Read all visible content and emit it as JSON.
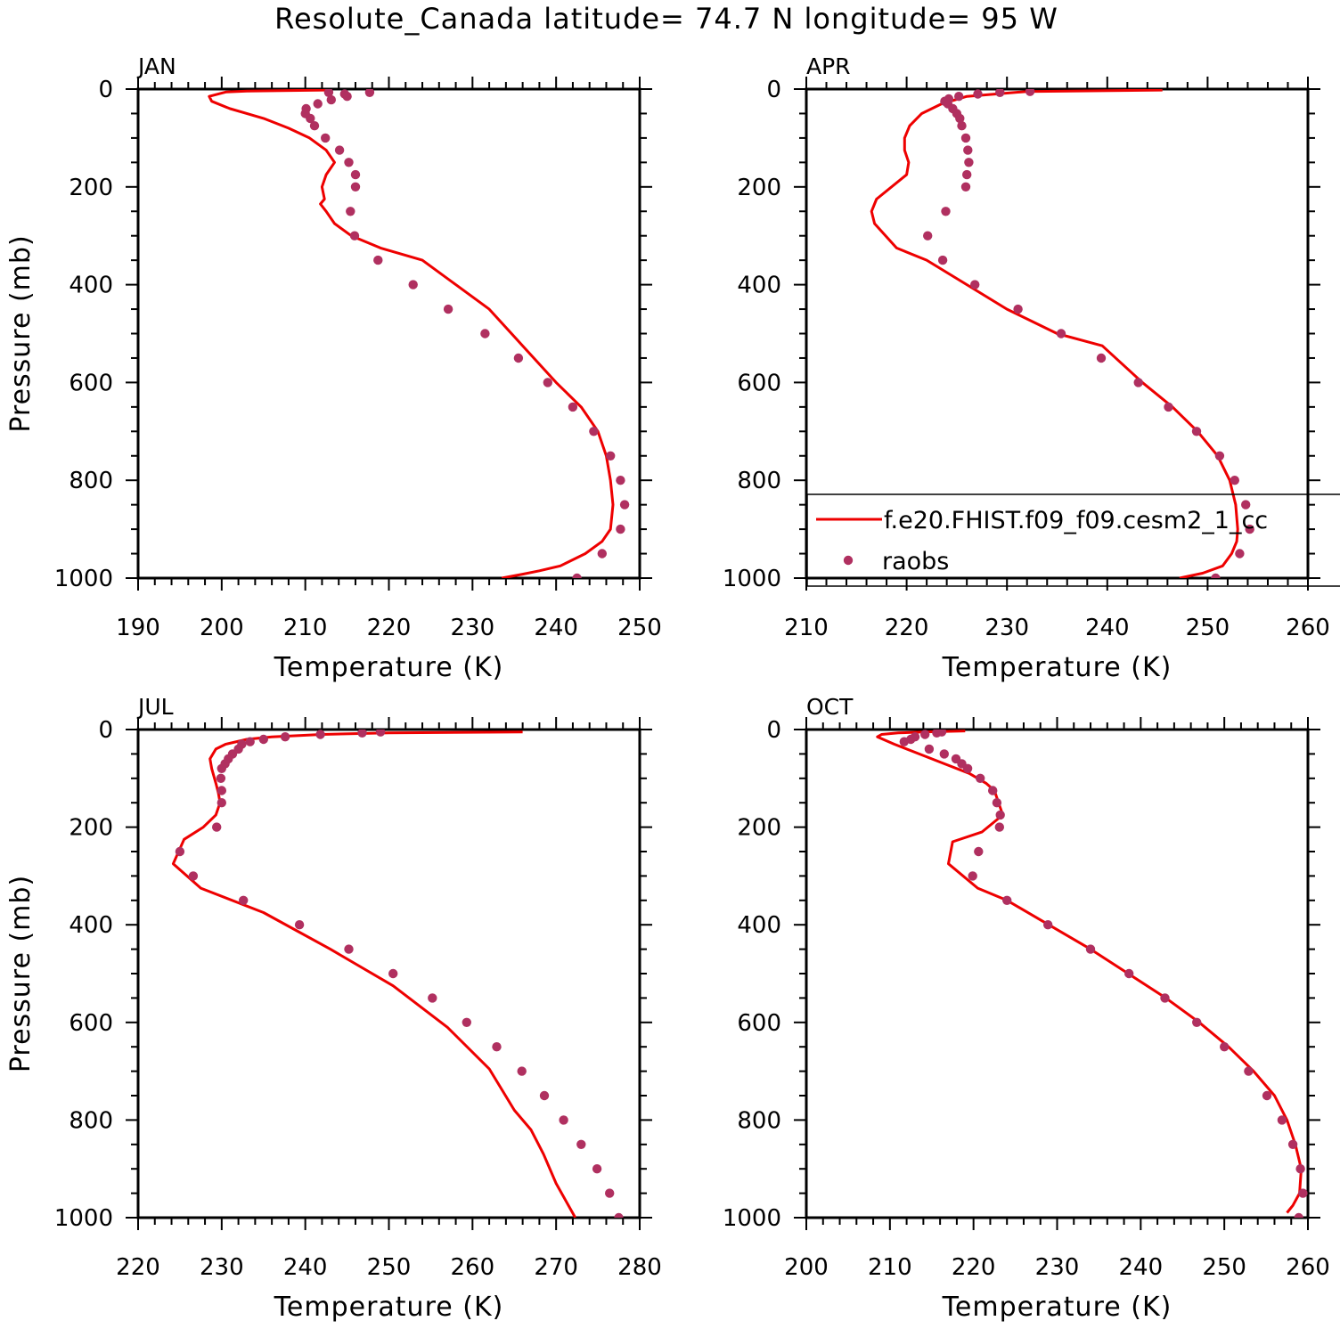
{
  "title": "Resolute_Canada  latitude= 74.7 N longitude= 95 W",
  "colors": {
    "model": "#ee0000",
    "obs": "#b03060",
    "axis": "#000000"
  },
  "legend": {
    "model_label": "f.e20.FHIST.f09_f09.cesm2_1_cc",
    "obs_label": "raobs"
  },
  "chart_data": [
    {
      "type": "line",
      "panel": "JAN",
      "xlabel": "Temperature (K)",
      "ylabel": "Pressure (mb)",
      "xlim": [
        190,
        250
      ],
      "ylim": [
        0,
        1000
      ],
      "y_inverted": true,
      "xticks": [
        190,
        200,
        210,
        220,
        230,
        240,
        250
      ],
      "yticks": [
        0,
        200,
        400,
        600,
        800,
        1000
      ],
      "series": [
        {
          "name": "f.e20.FHIST.f09_f09.cesm2_1_cc",
          "kind": "line",
          "x": [
            212.5,
            203,
            200.5,
            198.5,
            198.8,
            201,
            205,
            208,
            210.5,
            212.5,
            213.5,
            212.5,
            212.0,
            212.3,
            211.8,
            212.5,
            213.5,
            215.5,
            219,
            224,
            228,
            232,
            236,
            240,
            243,
            245,
            246,
            246.5,
            246.8,
            246.5,
            245.5,
            243.5,
            240.5,
            238,
            236,
            233.5
          ],
          "y": [
            2,
            4,
            6,
            15,
            25,
            40,
            60,
            80,
            100,
            125,
            150,
            175,
            200,
            225,
            235,
            250,
            275,
            300,
            325,
            350,
            400,
            450,
            525,
            600,
            650,
            700,
            750,
            800,
            850,
            900,
            925,
            950,
            975,
            985,
            992,
            1000
          ]
        },
        {
          "name": "raobs",
          "kind": "scatter",
          "x": [
            217.7,
            214.7,
            212.8,
            215.0,
            213.1,
            211.5,
            210.1,
            210.0,
            210.6,
            211.1,
            212.4,
            214.1,
            215.2,
            216.0,
            216.0,
            215.4,
            215.9,
            218.7,
            222.9,
            227.1,
            231.5,
            235.5,
            239.0,
            242.0,
            244.5,
            246.5,
            247.7,
            248.2,
            247.7,
            245.5,
            242.5
          ],
          "y": [
            7,
            10,
            7,
            15,
            22,
            30,
            40,
            50,
            60,
            75,
            100,
            125,
            150,
            175,
            200,
            250,
            300,
            350,
            400,
            450,
            500,
            550,
            600,
            650,
            700,
            750,
            800,
            850,
            900,
            950,
            1000
          ]
        }
      ]
    },
    {
      "type": "line",
      "panel": "APR",
      "xlabel": "Temperature (K)",
      "ylabel": "",
      "xlim": [
        210,
        260
      ],
      "ylim": [
        0,
        1000
      ],
      "y_inverted": true,
      "xticks": [
        210,
        220,
        230,
        240,
        250,
        260
      ],
      "yticks": [
        0,
        200,
        400,
        600,
        800,
        1000
      ],
      "series": [
        {
          "name": "f.e20.FHIST.f09_f09.cesm2_1_cc",
          "kind": "line",
          "x": [
            245.5,
            232,
            226,
            223.5,
            221.5,
            220.3,
            219.8,
            219.8,
            220.2,
            220.0,
            217,
            216.5,
            216.8,
            219,
            222,
            226,
            230,
            235,
            239.5,
            243.5,
            246.5,
            249,
            251,
            252.2,
            252.8,
            253.0,
            252.9,
            252.4,
            251.5,
            249.5,
            247.2
          ],
          "y": [
            2,
            5,
            15,
            30,
            50,
            75,
            100,
            125,
            150,
            175,
            225,
            250,
            275,
            325,
            350,
            400,
            450,
            500,
            525,
            600,
            650,
            700,
            750,
            800,
            850,
            900,
            925,
            950,
            975,
            990,
            1000
          ]
        },
        {
          "name": "raobs",
          "kind": "scatter",
          "x": [
            232.3,
            229.3,
            227.1,
            225.2,
            224.2,
            223.8,
            224.1,
            224.6,
            225.0,
            225.3,
            225.5,
            225.9,
            226.1,
            226.2,
            226.0,
            225.9,
            223.9,
            222.1,
            223.6,
            226.8,
            231.1,
            235.4,
            239.4,
            243.1,
            246.1,
            248.9,
            251.2,
            252.7,
            253.8,
            254.2,
            253.2,
            250.8
          ],
          "y": [
            5,
            7,
            10,
            15,
            20,
            25,
            30,
            40,
            50,
            60,
            75,
            100,
            125,
            150,
            175,
            200,
            250,
            300,
            350,
            400,
            450,
            500,
            550,
            600,
            650,
            700,
            750,
            800,
            850,
            900,
            950,
            1000
          ]
        }
      ]
    },
    {
      "type": "line",
      "panel": "JUL",
      "xlabel": "Temperature (K)",
      "ylabel": "Pressure (mb)",
      "xlim": [
        220,
        280
      ],
      "ylim": [
        0,
        1000
      ],
      "y_inverted": true,
      "xticks": [
        220,
        230,
        240,
        250,
        260,
        270,
        280
      ],
      "yticks": [
        0,
        200,
        400,
        600,
        800,
        1000
      ],
      "series": [
        {
          "name": "f.e20.FHIST.f09_f09.cesm2_1_cc",
          "kind": "line",
          "x": [
            266,
            250,
            242,
            236,
            233,
            230.5,
            229.3,
            228.6,
            228.8,
            229.3,
            229.6,
            229.8,
            229.3,
            227.8,
            225.5,
            224.2,
            227.5,
            235,
            243,
            250.5,
            257,
            262,
            265,
            267,
            268.5,
            270,
            272.3
          ],
          "y": [
            5,
            7,
            10,
            15,
            20,
            30,
            40,
            60,
            80,
            110,
            130,
            150,
            175,
            200,
            225,
            275,
            325,
            375,
            450,
            525,
            610,
            695,
            780,
            820,
            870,
            930,
            1000
          ]
        },
        {
          "name": "raobs",
          "kind": "scatter",
          "x": [
            249.0,
            246.8,
            241.8,
            237.6,
            235.0,
            233.4,
            232.4,
            232.0,
            231.3,
            230.8,
            230.4,
            230.0,
            229.9,
            230.0,
            230.0,
            229.4,
            225.0,
            226.6,
            232.6,
            239.3,
            245.2,
            250.5,
            255.2,
            259.3,
            262.9,
            265.9,
            268.6,
            270.9,
            273.0,
            274.9,
            276.4,
            277.5
          ],
          "y": [
            5,
            7,
            10,
            15,
            20,
            25,
            30,
            40,
            50,
            60,
            70,
            80,
            100,
            125,
            150,
            200,
            250,
            300,
            350,
            400,
            450,
            500,
            550,
            600,
            650,
            700,
            750,
            800,
            850,
            900,
            950,
            1000
          ]
        }
      ]
    },
    {
      "type": "line",
      "panel": "OCT",
      "xlabel": "Temperature (K)",
      "ylabel": "",
      "xlim": [
        200,
        260
      ],
      "ylim": [
        0,
        1000
      ],
      "y_inverted": true,
      "xticks": [
        200,
        210,
        220,
        230,
        240,
        250,
        260
      ],
      "yticks": [
        0,
        200,
        400,
        600,
        800,
        1000
      ],
      "series": [
        {
          "name": "f.e20.FHIST.f09_f09.cesm2_1_cc",
          "kind": "line",
          "x": [
            219,
            214,
            211,
            209,
            208.5,
            210.5,
            213.5,
            216.5,
            219.5,
            221.5,
            222.5,
            223.0,
            223.5,
            221,
            217.5,
            217.0,
            220.5,
            224,
            229,
            234,
            238.5,
            243,
            247,
            250.5,
            253.5,
            256,
            257.5,
            258.5,
            259.2,
            259.0,
            258.2,
            257.5
          ],
          "y": [
            3,
            5,
            7,
            10,
            15,
            30,
            50,
            70,
            90,
            110,
            125,
            150,
            175,
            210,
            230,
            275,
            325,
            350,
            400,
            450,
            500,
            550,
            600,
            650,
            700,
            750,
            800,
            850,
            900,
            950,
            975,
            990
          ]
        },
        {
          "name": "raobs",
          "kind": "scatter",
          "x": [
            216.2,
            215.6,
            214.2,
            213.0,
            212.5,
            211.7,
            214.7,
            216.5,
            217.9,
            218.6,
            219.3,
            220.8,
            222.3,
            222.8,
            223.2,
            223.1,
            220.6,
            219.9,
            224.0,
            228.9,
            234.0,
            238.6,
            242.9,
            246.7,
            250.0,
            252.9,
            255.1,
            256.9,
            258.2,
            259.1,
            259.4,
            258.9
          ],
          "y": [
            5,
            7,
            10,
            15,
            20,
            25,
            40,
            50,
            60,
            70,
            80,
            100,
            125,
            150,
            175,
            200,
            250,
            300,
            350,
            400,
            450,
            500,
            550,
            600,
            650,
            700,
            750,
            800,
            850,
            900,
            950,
            1000
          ]
        }
      ]
    }
  ]
}
